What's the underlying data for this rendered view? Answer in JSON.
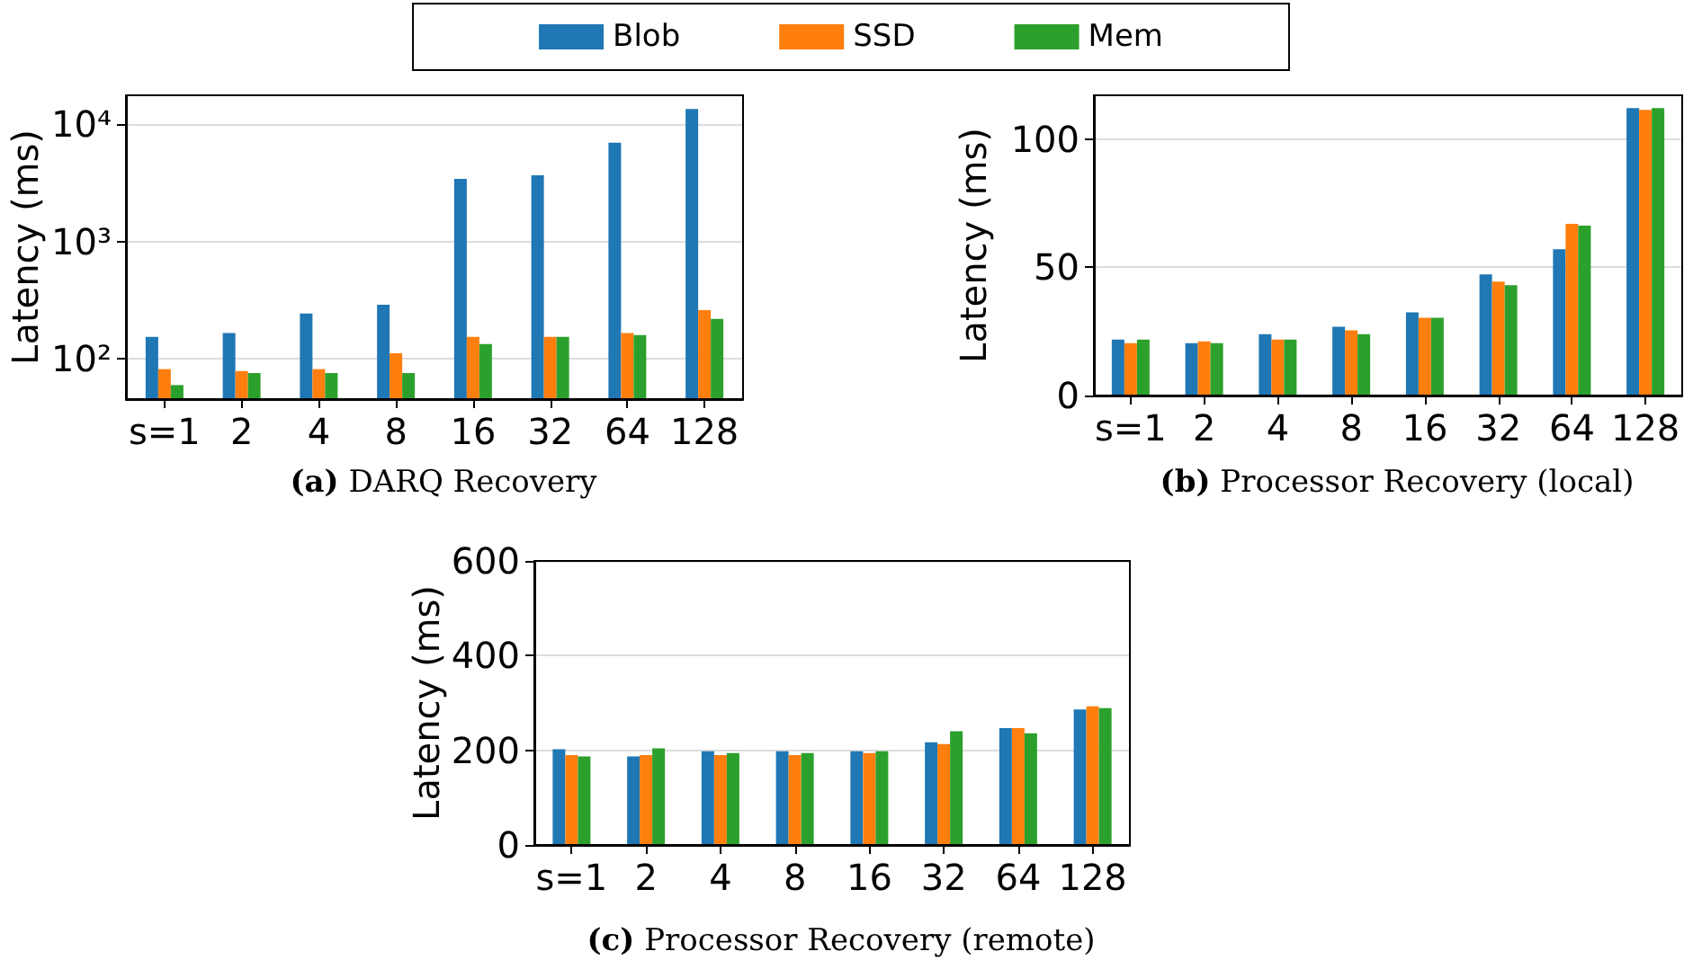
{
  "chart_data": [
    {
      "type": "bar",
      "title": "(a) DARQ Recovery",
      "ylabel": "Latency (ms)",
      "categories": [
        "s=1",
        "2",
        "4",
        "8",
        "16",
        "32",
        "64",
        "128"
      ],
      "log": true,
      "ylim": [
        45.6,
        17500
      ],
      "yticks": [
        {
          "value": 100,
          "label": "10²"
        },
        {
          "value": 1000,
          "label": "10³"
        },
        {
          "value": 10000,
          "label": "10⁴"
        }
      ],
      "grid": "y",
      "legend": "top",
      "series": [
        {
          "name": "Blob",
          "color": "#1f77b4",
          "values": [
            154,
            166,
            244,
            290,
            3400,
            3650,
            6900,
            13400
          ]
        },
        {
          "name": "SSD",
          "color": "#ff7f0e",
          "values": [
            82,
            79,
            82,
            112,
            154,
            154,
            166,
            261
          ]
        },
        {
          "name": "Mem",
          "color": "#2ca02c",
          "values": [
            60,
            76,
            76,
            76,
            134,
            154,
            160,
            219
          ]
        }
      ]
    },
    {
      "type": "bar",
      "title": "(b) Processor Recovery (local)",
      "ylabel": "Latency (ms)",
      "categories": [
        "s=1",
        "2",
        "4",
        "8",
        "16",
        "32",
        "64",
        "128"
      ],
      "ylim": [
        0,
        117
      ],
      "yticks": [
        0,
        50,
        100
      ],
      "grid": "y",
      "series": [
        {
          "color": "#1f77b4",
          "values": [
            21.8,
            20.4,
            23.9,
            26.8,
            32.4,
            47.2,
            57,
            112
          ]
        },
        {
          "color": "#ff7f0e",
          "values": [
            20.4,
            21.1,
            21.8,
            25.4,
            30.3,
            44.4,
            66.9,
            111.3
          ]
        },
        {
          "color": "#2ca02c",
          "values": [
            21.8,
            20.4,
            21.8,
            23.9,
            30.3,
            43,
            66.2,
            112
          ]
        }
      ]
    },
    {
      "type": "bar",
      "title": "(c) Processor Recovery (remote)",
      "ylabel": "Latency (ms)",
      "categories": [
        "s=1",
        "2",
        "4",
        "8",
        "16",
        "32",
        "64",
        "128"
      ],
      "ylim": [
        0,
        600
      ],
      "yticks": [
        0,
        200,
        400,
        600
      ],
      "grid": "y",
      "series": [
        {
          "color": "#1f77b4",
          "values": [
            202,
            187,
            198,
            198,
            198,
            217,
            247,
            286
          ]
        },
        {
          "color": "#ff7f0e",
          "values": [
            190,
            190,
            190,
            190,
            194,
            213,
            247,
            293
          ]
        },
        {
          "color": "#2ca02c",
          "values": [
            187,
            204,
            194,
            194,
            198,
            240,
            236,
            289
          ]
        }
      ]
    }
  ]
}
